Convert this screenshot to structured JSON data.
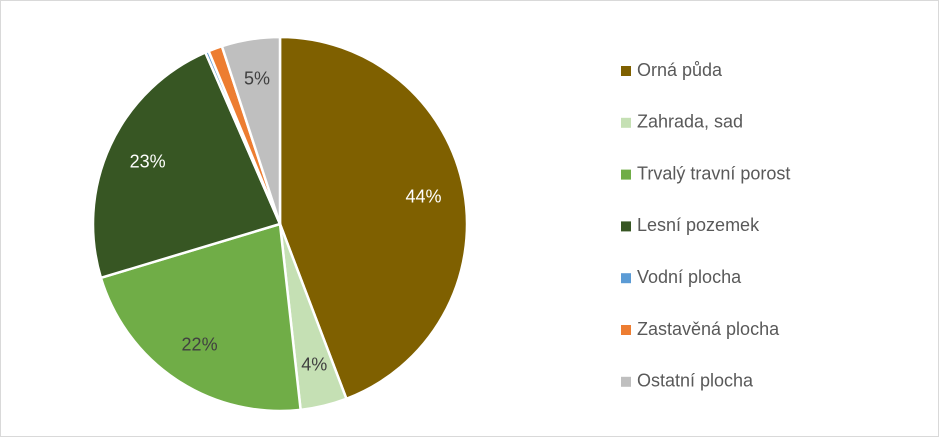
{
  "chart_data": {
    "type": "pie",
    "categories": [
      "Orná půda",
      "Zahrada, sad",
      "Trvalý travní porost",
      "Lesní pozemek",
      "Vodní plocha",
      "Zastavěná plocha",
      "Ostatní plocha"
    ],
    "values": [
      44,
      4,
      22,
      23,
      0.3,
      1.2,
      5
    ],
    "value_labels": [
      "44%",
      "4%",
      "22%",
      "23%",
      null,
      null,
      "5%"
    ],
    "colors": [
      "#7f6000",
      "#c5e0b4",
      "#70ad47",
      "#375623",
      "#5b9bd5",
      "#ed7d31",
      "#bfbfbf"
    ],
    "legend": "right"
  }
}
